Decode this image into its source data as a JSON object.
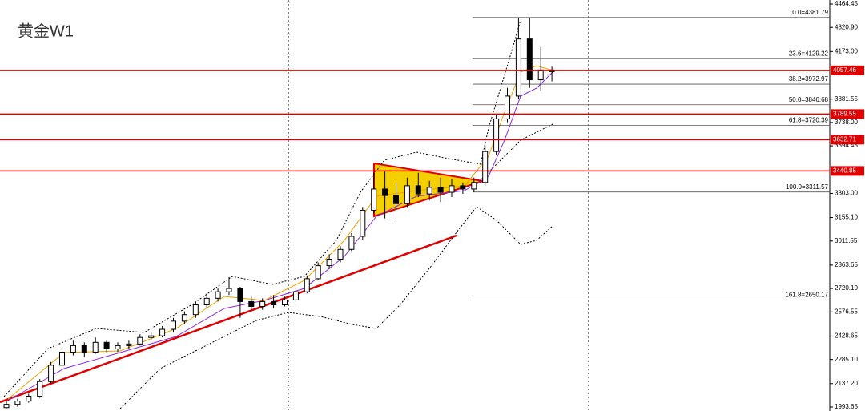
{
  "chart_data": {
    "type": "candlestick",
    "title": "黄金W1",
    "ylim": [
      1993.65,
      4464.45
    ],
    "yticks": [
      4464.45,
      {
        "value": 4320.9,
        "label": "4320.90"
      },
      {
        "value": 4173,
        "label": "4173.00"
      },
      3881.55,
      {
        "value": 3738,
        "label": "3738.00"
      },
      3594.45,
      {
        "value": 3303,
        "label": "3303.00"
      },
      {
        "value": 3155.1,
        "label": "3155.10"
      },
      3011.55,
      2863.65,
      {
        "value": 2720.1,
        "label": "2720.10"
      },
      2576.55,
      2428.65,
      {
        "value": 2285.1,
        "label": "2285.10"
      },
      {
        "value": 2137.2,
        "label": "2137.20"
      },
      1993.65
    ],
    "levels": [
      4057.46,
      3789.55,
      3632.71,
      3440.85
    ],
    "level_color": "#e00000",
    "fibonacci": [
      {
        "value": 4381.79,
        "label": "0.0=4381.79"
      },
      {
        "value": 4129.22,
        "label": "23.6=4129.22"
      },
      {
        "value": 3972.97,
        "label": "38.2=3972.97"
      },
      {
        "value": 3846.68,
        "label": "50.0=3846.68"
      },
      {
        "value": 3720.39,
        "label": "61.8=3720.39"
      },
      {
        "value": 3311.57,
        "label": "100.0=3311.57"
      },
      {
        "value": 2650.17,
        "label": "161.8=2650.17"
      }
    ],
    "ohlc": [
      [
        1990,
        2030,
        1985,
        2010
      ],
      [
        2010,
        2045,
        1995,
        2030
      ],
      [
        2030,
        2075,
        2020,
        2060
      ],
      [
        2060,
        2165,
        2050,
        2150
      ],
      [
        2150,
        2270,
        2140,
        2250
      ],
      [
        2250,
        2350,
        2230,
        2330
      ],
      [
        2330,
        2400,
        2310,
        2370
      ],
      [
        2370,
        2390,
        2300,
        2330
      ],
      [
        2330,
        2420,
        2320,
        2390
      ],
      [
        2390,
        2400,
        2330,
        2350
      ],
      [
        2350,
        2390,
        2330,
        2370
      ],
      [
        2370,
        2400,
        2350,
        2380
      ],
      [
        2380,
        2440,
        2370,
        2420
      ],
      [
        2420,
        2450,
        2400,
        2430
      ],
      [
        2430,
        2490,
        2420,
        2470
      ],
      [
        2470,
        2540,
        2450,
        2520
      ],
      [
        2520,
        2580,
        2500,
        2560
      ],
      [
        2560,
        2640,
        2540,
        2620
      ],
      [
        2620,
        2690,
        2600,
        2660
      ],
      [
        2660,
        2720,
        2640,
        2700
      ],
      [
        2700,
        2790,
        2680,
        2720
      ],
      [
        2720,
        2730,
        2540,
        2640
      ],
      [
        2640,
        2670,
        2590,
        2610
      ],
      [
        2610,
        2660,
        2590,
        2640
      ],
      [
        2640,
        2680,
        2600,
        2620
      ],
      [
        2620,
        2670,
        2610,
        2650
      ],
      [
        2650,
        2720,
        2640,
        2700
      ],
      [
        2700,
        2800,
        2690,
        2780
      ],
      [
        2780,
        2880,
        2770,
        2860
      ],
      [
        2860,
        2930,
        2840,
        2900
      ],
      [
        2900,
        2980,
        2880,
        2960
      ],
      [
        2960,
        3060,
        2950,
        3040
      ],
      [
        3040,
        3220,
        3020,
        3200
      ],
      [
        3200,
        3430,
        3180,
        3330
      ],
      [
        3330,
        3440,
        3150,
        3290
      ],
      [
        3290,
        3370,
        3120,
        3240
      ],
      [
        3240,
        3400,
        3220,
        3350
      ],
      [
        3350,
        3430,
        3280,
        3300
      ],
      [
        3300,
        3380,
        3260,
        3340
      ],
      [
        3340,
        3400,
        3250,
        3310
      ],
      [
        3310,
        3390,
        3280,
        3350
      ],
      [
        3350,
        3370,
        3300,
        3330
      ],
      [
        3330,
        3400,
        3310,
        3370
      ],
      [
        3370,
        3600,
        3350,
        3560
      ],
      [
        3560,
        3790,
        3540,
        3760
      ],
      [
        3760,
        3950,
        3740,
        3900
      ],
      [
        3900,
        4380,
        3880,
        4250
      ],
      [
        4250,
        4380,
        3950,
        4000
      ],
      [
        4000,
        4200,
        3930,
        4060
      ],
      [
        4060,
        4080,
        3990,
        4050
      ]
    ]
  }
}
